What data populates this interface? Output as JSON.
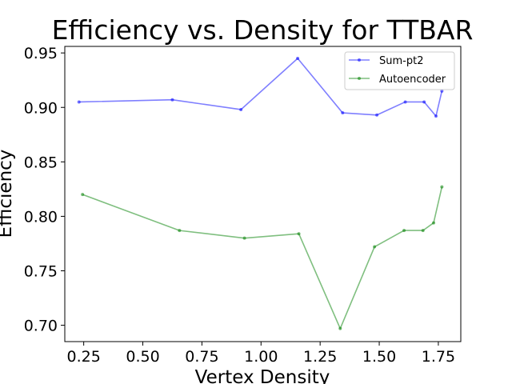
{
  "chart_data": {
    "type": "line",
    "title": "Efficiency vs. Density for TTBAR",
    "xlabel": "Vertex Density",
    "ylabel": "Efficiency",
    "xlim": [
      0.17,
      1.845
    ],
    "ylim": [
      0.685,
      0.956
    ],
    "xticks": [
      "0.25",
      "0.50",
      "0.75",
      "1.00",
      "1.25",
      "1.50",
      "1.75"
    ],
    "xtick_values": [
      0.25,
      0.5,
      0.75,
      1.0,
      1.25,
      1.5,
      1.75
    ],
    "yticks": [
      "0.70",
      "0.75",
      "0.80",
      "0.85",
      "0.90",
      "0.95"
    ],
    "ytick_values": [
      0.7,
      0.75,
      0.8,
      0.85,
      0.9,
      0.95
    ],
    "grid": false,
    "legend_position": "top-right",
    "series": [
      {
        "name": "Sum-pt2",
        "color": "#0000ff",
        "x": [
          0.23,
          0.625,
          0.915,
          1.155,
          1.345,
          1.49,
          1.61,
          1.69,
          1.74,
          1.765
        ],
        "y": [
          0.905,
          0.907,
          0.898,
          0.945,
          0.895,
          0.893,
          0.905,
          0.905,
          0.892,
          0.915
        ]
      },
      {
        "name": "Autoencoder",
        "color": "#008000",
        "x": [
          0.245,
          0.655,
          0.93,
          1.16,
          1.335,
          1.48,
          1.605,
          1.685,
          1.73,
          1.765
        ],
        "y": [
          0.82,
          0.787,
          0.78,
          0.784,
          0.697,
          0.772,
          0.787,
          0.787,
          0.794,
          0.827
        ]
      }
    ]
  }
}
